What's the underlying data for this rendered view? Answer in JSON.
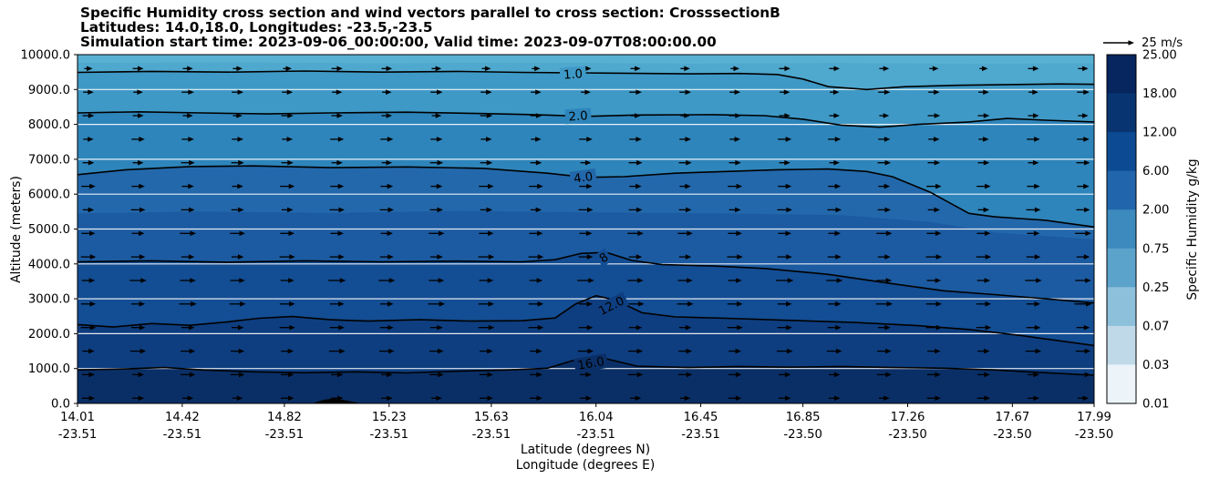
{
  "title": {
    "line1": "Specific Humidity cross section and wind vectors parallel to cross section: CrosssectionB",
    "line2": "Latitudes: 14.0,18.0, Longitudes: -23.5,-23.5",
    "line3": "Simulation start time: 2023-09-06_00:00:00, Valid time: 2023-09-07T08:00:00.00"
  },
  "axes": {
    "ylabel": "Altitude (meters)",
    "xlabel_line1": "Latitude (degrees N)",
    "xlabel_line2": "Longitude (degrees E)",
    "y_ticks": [
      "0.0",
      "1000.0",
      "2000.0",
      "3000.0",
      "4000.0",
      "5000.0",
      "6000.0",
      "7000.0",
      "8000.0",
      "9000.0",
      "10000.0"
    ],
    "y_tick_values": [
      0,
      1000,
      2000,
      3000,
      4000,
      5000,
      6000,
      7000,
      8000,
      9000,
      10000
    ],
    "x_ticks_lat": [
      "14.01",
      "14.42",
      "14.82",
      "15.23",
      "15.63",
      "16.04",
      "16.45",
      "16.85",
      "17.26",
      "17.67",
      "17.99"
    ],
    "x_ticks_lon": [
      "-23.51",
      "-23.51",
      "-23.51",
      "-23.51",
      "-23.51",
      "-23.51",
      "-23.51",
      "-23.50",
      "-23.50",
      "-23.50",
      "-23.50"
    ],
    "x_tick_values": [
      14.01,
      14.42,
      14.82,
      15.23,
      15.63,
      16.04,
      16.45,
      16.85,
      17.26,
      17.67,
      17.99
    ]
  },
  "colorbar": {
    "label": "Specific Humidity g/kg",
    "tick_labels": [
      "25.00",
      "18.00",
      "12.00",
      "6.00",
      "2.00",
      "0.75",
      "0.25",
      "0.07",
      "0.03",
      "0.01"
    ],
    "segment_colors": [
      "#07255f",
      "#083572",
      "#0c4b94",
      "#2166ac",
      "#3c8abe",
      "#5ba3cb",
      "#8dc0da",
      "#c0d9e8",
      "#ecf4f9"
    ]
  },
  "quiver_key": {
    "label": "25 m/s",
    "speed_ms": 25
  },
  "chart_data": {
    "type": "heatmap",
    "subtype": "filled-contour-cross-section-with-wind-vectors",
    "title": "Specific Humidity cross section and wind vectors parallel to cross section: CrosssectionB",
    "xlabel": "Latitude (degrees N) / Longitude (degrees E)",
    "ylabel": "Altitude (meters)",
    "x_range": [
      14.01,
      17.99
    ],
    "alt_range": [
      0,
      10000
    ],
    "humidity_units": "g/kg",
    "colorbar_levels": [
      0.01,
      0.03,
      0.07,
      0.25,
      0.75,
      2.0,
      6.0,
      12.0,
      18.0,
      25.0
    ],
    "contour_levels_gkg": [
      1.0,
      2.0,
      4.0,
      8.0,
      12.0,
      16.0
    ],
    "base_color": "#58b0d3",
    "contours": [
      {
        "level": 0.75,
        "stroke": false,
        "fill_below": "#4fa8ce",
        "points": [
          [
            14.01,
            9760
          ],
          [
            14.6,
            9780
          ],
          [
            15.2,
            9750
          ],
          [
            15.8,
            9770
          ],
          [
            16.4,
            9740
          ],
          [
            17.0,
            9760
          ],
          [
            17.5,
            9730
          ],
          [
            17.99,
            9750
          ]
        ]
      },
      {
        "level": 1.0,
        "stroke": true,
        "label": "1.0",
        "label_lat": 15.95,
        "label_alt": 9440,
        "label_rot": -4,
        "fill_below": "#3f99c6",
        "points": [
          [
            14.01,
            9490
          ],
          [
            14.3,
            9520
          ],
          [
            14.6,
            9500
          ],
          [
            14.9,
            9530
          ],
          [
            15.2,
            9500
          ],
          [
            15.5,
            9520
          ],
          [
            15.75,
            9490
          ],
          [
            16.1,
            9470
          ],
          [
            16.4,
            9450
          ],
          [
            16.6,
            9460
          ],
          [
            16.75,
            9430
          ],
          [
            16.85,
            9300
          ],
          [
            16.95,
            9080
          ],
          [
            17.1,
            9000
          ],
          [
            17.25,
            9080
          ],
          [
            17.45,
            9120
          ],
          [
            17.65,
            9140
          ],
          [
            17.85,
            9160
          ],
          [
            17.99,
            9150
          ]
        ]
      },
      {
        "level": 2.0,
        "stroke": true,
        "label": "2.0",
        "label_lat": 15.97,
        "label_alt": 8240,
        "label_rot": -4,
        "fill_below": "#2e85bb",
        "points": [
          [
            14.01,
            8330
          ],
          [
            14.25,
            8360
          ],
          [
            14.5,
            8330
          ],
          [
            14.75,
            8300
          ],
          [
            15.0,
            8330
          ],
          [
            15.3,
            8350
          ],
          [
            15.6,
            8310
          ],
          [
            15.8,
            8280
          ],
          [
            16.0,
            8230
          ],
          [
            16.2,
            8270
          ],
          [
            16.5,
            8280
          ],
          [
            16.7,
            8250
          ],
          [
            16.85,
            8150
          ],
          [
            17.0,
            7980
          ],
          [
            17.15,
            7920
          ],
          [
            17.3,
            8000
          ],
          [
            17.5,
            8070
          ],
          [
            17.65,
            8170
          ],
          [
            17.8,
            8120
          ],
          [
            17.99,
            8070
          ]
        ]
      },
      {
        "level": 4.0,
        "stroke": true,
        "label": "4.0",
        "label_lat": 15.99,
        "label_alt": 6480,
        "label_rot": -8,
        "fill_below": "#2368ab",
        "points": [
          [
            14.01,
            6560
          ],
          [
            14.2,
            6700
          ],
          [
            14.45,
            6790
          ],
          [
            14.7,
            6810
          ],
          [
            15.0,
            6760
          ],
          [
            15.3,
            6780
          ],
          [
            15.6,
            6740
          ],
          [
            15.85,
            6600
          ],
          [
            16.0,
            6480
          ],
          [
            16.15,
            6500
          ],
          [
            16.35,
            6600
          ],
          [
            16.55,
            6650
          ],
          [
            16.75,
            6700
          ],
          [
            16.95,
            6720
          ],
          [
            17.1,
            6650
          ],
          [
            17.2,
            6500
          ],
          [
            17.35,
            6050
          ],
          [
            17.5,
            5450
          ],
          [
            17.6,
            5350
          ],
          [
            17.7,
            5300
          ],
          [
            17.8,
            5250
          ],
          [
            17.9,
            5150
          ],
          [
            17.99,
            5060
          ]
        ]
      },
      {
        "level": 6.0,
        "stroke": false,
        "fill_below": "#1c5ba1",
        "points": [
          [
            14.01,
            5450
          ],
          [
            14.5,
            5500
          ],
          [
            15.0,
            5460
          ],
          [
            15.5,
            5520
          ],
          [
            16.0,
            5480
          ],
          [
            16.5,
            5450
          ],
          [
            17.0,
            5400
          ],
          [
            17.35,
            5200
          ],
          [
            17.6,
            4900
          ],
          [
            17.99,
            4700
          ]
        ]
      },
      {
        "level": 8.0,
        "stroke": true,
        "label": "8",
        "label_lat": 16.07,
        "label_alt": 4180,
        "label_rot": -35,
        "fill_below": "#134d93",
        "points": [
          [
            14.01,
            4060
          ],
          [
            14.3,
            4090
          ],
          [
            14.6,
            4050
          ],
          [
            14.9,
            4090
          ],
          [
            15.2,
            4060
          ],
          [
            15.5,
            4080
          ],
          [
            15.75,
            4060
          ],
          [
            15.88,
            4120
          ],
          [
            15.98,
            4300
          ],
          [
            16.08,
            4330
          ],
          [
            16.18,
            4100
          ],
          [
            16.3,
            3980
          ],
          [
            16.5,
            3940
          ],
          [
            16.7,
            3870
          ],
          [
            16.95,
            3700
          ],
          [
            17.2,
            3430
          ],
          [
            17.4,
            3230
          ],
          [
            17.6,
            3120
          ],
          [
            17.8,
            3000
          ],
          [
            17.99,
            2880
          ]
        ]
      },
      {
        "level": 12.0,
        "stroke": true,
        "label": "12.0",
        "label_lat": 16.1,
        "label_alt": 2800,
        "label_rot": -27,
        "fill_below": "#0e3e80",
        "points": [
          [
            14.01,
            2260
          ],
          [
            14.15,
            2190
          ],
          [
            14.3,
            2290
          ],
          [
            14.45,
            2240
          ],
          [
            14.6,
            2340
          ],
          [
            14.72,
            2440
          ],
          [
            14.85,
            2490
          ],
          [
            15.0,
            2400
          ],
          [
            15.15,
            2360
          ],
          [
            15.35,
            2400
          ],
          [
            15.55,
            2360
          ],
          [
            15.75,
            2370
          ],
          [
            15.88,
            2450
          ],
          [
            15.96,
            2850
          ],
          [
            16.04,
            3090
          ],
          [
            16.12,
            2950
          ],
          [
            16.22,
            2600
          ],
          [
            16.35,
            2480
          ],
          [
            16.55,
            2440
          ],
          [
            16.8,
            2380
          ],
          [
            17.05,
            2320
          ],
          [
            17.3,
            2230
          ],
          [
            17.5,
            2120
          ],
          [
            17.7,
            1950
          ],
          [
            17.85,
            1800
          ],
          [
            17.99,
            1660
          ]
        ]
      },
      {
        "level": 16.0,
        "stroke": true,
        "label": "16.0",
        "label_lat": 16.02,
        "label_alt": 1150,
        "label_rot": -10,
        "fill_below": "#0a2f66",
        "points": [
          [
            14.01,
            960
          ],
          [
            14.2,
            990
          ],
          [
            14.35,
            1030
          ],
          [
            14.5,
            960
          ],
          [
            14.7,
            905
          ],
          [
            14.9,
            880
          ],
          [
            15.1,
            905
          ],
          [
            15.3,
            875
          ],
          [
            15.5,
            925
          ],
          [
            15.7,
            960
          ],
          [
            15.85,
            1010
          ],
          [
            15.95,
            1230
          ],
          [
            16.08,
            1280
          ],
          [
            16.2,
            1070
          ],
          [
            16.4,
            1030
          ],
          [
            16.6,
            1060
          ],
          [
            16.8,
            1040
          ],
          [
            17.0,
            1060
          ],
          [
            17.2,
            1030
          ],
          [
            17.4,
            1010
          ],
          [
            17.6,
            960
          ],
          [
            17.8,
            880
          ],
          [
            17.99,
            810
          ]
        ]
      }
    ],
    "wind": {
      "units": "m/s",
      "key_speed": 25,
      "direction": "parallel-to-cross-section (pointing toward increasing latitude)",
      "columns": 21,
      "rows": [
        {
          "alt": 9600,
          "speed": 9
        },
        {
          "alt": 8925,
          "speed": 10
        },
        {
          "alt": 8250,
          "speed": 10
        },
        {
          "alt": 7575,
          "speed": 11
        },
        {
          "alt": 6900,
          "speed": 11
        },
        {
          "alt": 6225,
          "speed": 12
        },
        {
          "alt": 5550,
          "speed": 12
        },
        {
          "alt": 4875,
          "speed": 13
        },
        {
          "alt": 4200,
          "speed": 13
        },
        {
          "alt": 3525,
          "speed": 14
        },
        {
          "alt": 2850,
          "speed": 14
        },
        {
          "alt": 2175,
          "speed": 13
        },
        {
          "alt": 1500,
          "speed": 13
        },
        {
          "alt": 825,
          "speed": 12
        },
        {
          "alt": 150,
          "speed": 11
        }
      ]
    },
    "terrain": [
      [
        14.93,
        0
      ],
      [
        14.97,
        100
      ],
      [
        15.01,
        140
      ],
      [
        15.06,
        90
      ],
      [
        15.12,
        0
      ]
    ]
  }
}
